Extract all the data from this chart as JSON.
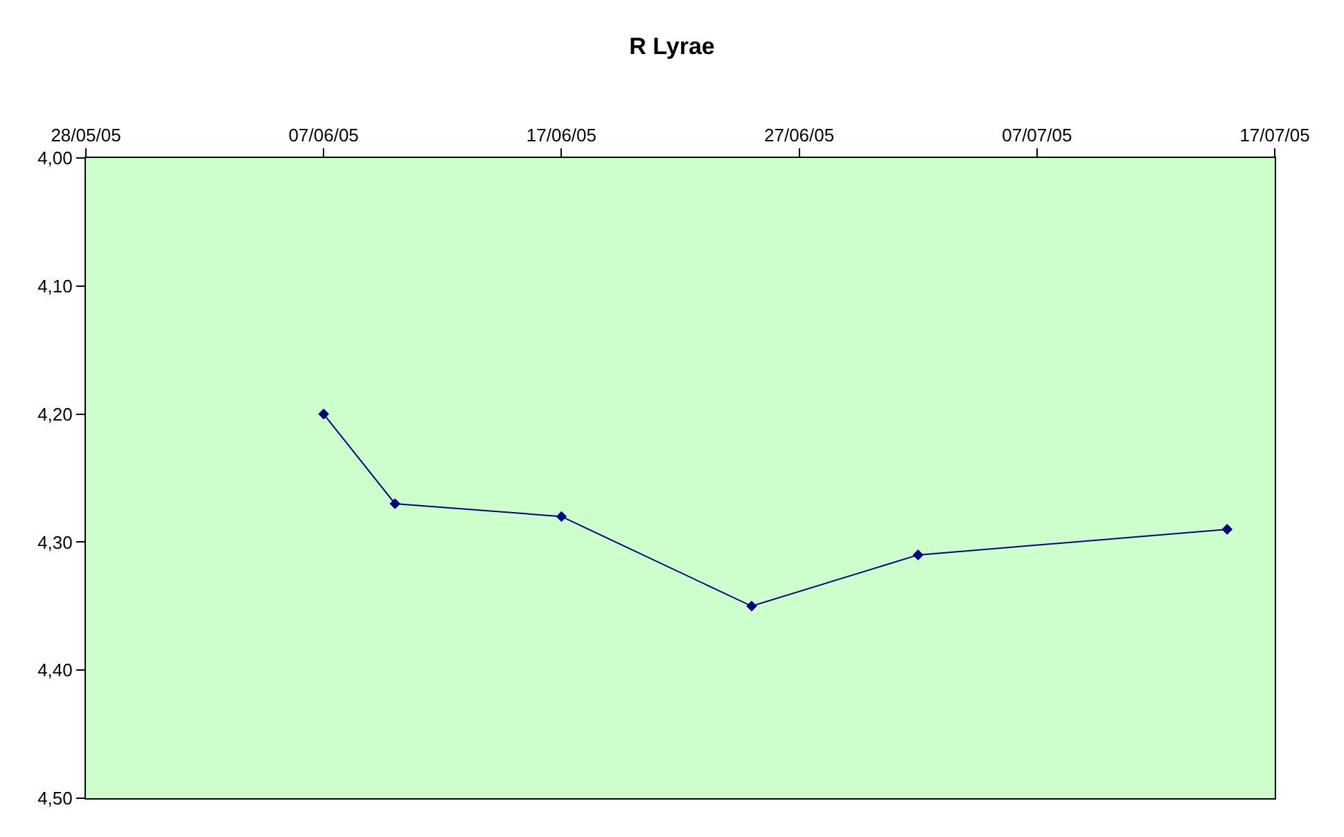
{
  "chart_data": {
    "type": "line",
    "title": "R Lyrae",
    "x": [
      "--06-07",
      "--06-10",
      "--06-17",
      "--06-25",
      "--07-02",
      "--07-15"
    ],
    "series": [
      {
        "color": "#000080",
        "values": [
          4.2,
          4.27,
          4.28,
          4.35,
          4.31,
          4.29
        ]
      }
    ],
    "xlim": [
      "--05-28",
      "--07-17"
    ],
    "xticks": [
      {
        "value": "--05-28",
        "label": "28/05/05"
      },
      {
        "value": "--06-07",
        "label": "07/06/05"
      },
      {
        "value": "--06-17",
        "label": "17/06/05"
      },
      {
        "value": "--06-27",
        "label": "27/06/05"
      },
      {
        "value": "--07-07",
        "label": "07/07/05"
      },
      {
        "value": "--07-17",
        "label": "17/07/05"
      }
    ],
    "ylim": [
      4.5,
      4.0
    ],
    "yticks": [
      {
        "value": 4.0,
        "label": "4,00"
      },
      {
        "value": 4.1,
        "label": "4,10"
      },
      {
        "value": 4.2,
        "label": "4,20"
      },
      {
        "value": 4.3,
        "label": "4,30"
      },
      {
        "value": 4.4,
        "label": "4,40"
      },
      {
        "value": 4.5,
        "label": "4,50"
      }
    ],
    "grid": false,
    "marker": "diamond",
    "line_style": "solid"
  }
}
